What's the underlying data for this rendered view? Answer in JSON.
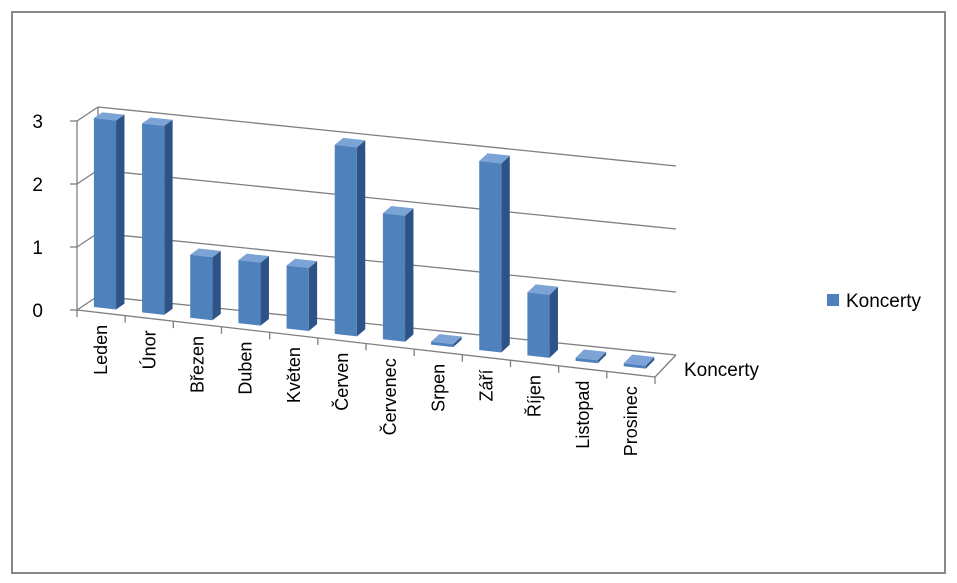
{
  "chart_data": {
    "type": "bar",
    "categories": [
      "Leden",
      "Únor",
      "Březen",
      "Duben",
      "Květen",
      "Červen",
      "Červenec",
      "Srpen",
      "Září",
      "Říjen",
      "Listopad",
      "Prosinec"
    ],
    "series": [
      {
        "name": "Koncerty",
        "values": [
          3,
          3,
          1,
          1,
          1,
          3,
          2,
          0,
          3,
          1,
          0,
          0
        ]
      }
    ],
    "title": "",
    "xlabel": "",
    "ylabel": "",
    "ylim": [
      0,
      3
    ],
    "yticks": [
      "0",
      "1",
      "2",
      "3"
    ],
    "depth_axis_label": "Koncerty",
    "grid": true,
    "legend_position": "right",
    "style": "3d-column",
    "colors": {
      "bar_front": "#4F81BD",
      "bar_side": "#2E5386",
      "bar_top": "#7BA3D6",
      "grid": "#7F7F7F"
    }
  }
}
